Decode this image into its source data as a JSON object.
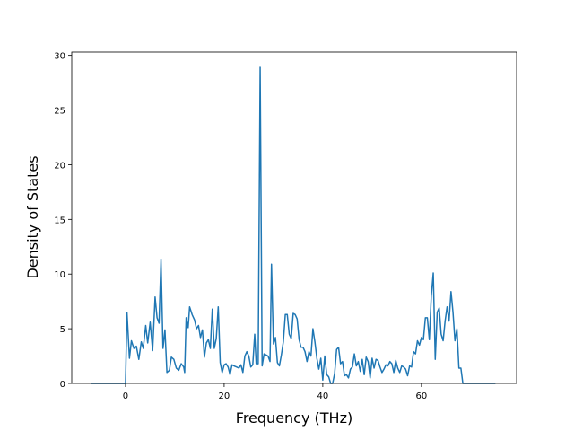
{
  "chart_data": {
    "type": "line",
    "x_label": "Frequency (THz)",
    "y_label": "Density of States",
    "color": "#1f77b4",
    "xlim": [
      -10.9,
      79.3
    ],
    "ylim": [
      0,
      30.3
    ],
    "xticks": [
      0,
      20,
      40,
      60
    ],
    "yticks": [
      0,
      5,
      10,
      15,
      20,
      25,
      30
    ],
    "x": [
      -7,
      -1,
      0,
      0.3,
      0.8,
      1.2,
      1.7,
      2.2,
      2.7,
      3.2,
      3.6,
      4.1,
      4.5,
      5,
      5.5,
      6,
      6.4,
      6.8,
      7.2,
      7.6,
      8,
      8.4,
      8.9,
      9.3,
      9.8,
      10.3,
      10.8,
      11.3,
      11.8,
      12,
      12.3,
      12.7,
      13,
      13.5,
      14,
      14.4,
      14.8,
      15.2,
      15.6,
      16,
      16.4,
      16.8,
      17.2,
      17.6,
      18,
      18.4,
      18.8,
      19.2,
      19.6,
      20,
      20.4,
      20.8,
      21.2,
      21.6,
      22,
      22.5,
      23,
      23.4,
      23.8,
      24.2,
      24.6,
      25,
      25.4,
      25.8,
      26.2,
      26.5,
      26.9,
      27.3,
      27.7,
      28.1,
      28.5,
      28.9,
      29.3,
      29.6,
      30,
      30.4,
      30.8,
      31.2,
      31.6,
      32,
      32.4,
      32.8,
      33.2,
      33.6,
      34,
      34.4,
      34.8,
      35.2,
      35.6,
      36,
      36.4,
      36.8,
      37.2,
      37.6,
      38,
      38.4,
      38.8,
      39.2,
      39.6,
      40,
      40.4,
      40.8,
      41.2,
      41.6,
      42,
      42.4,
      42.8,
      43.2,
      43.6,
      44,
      44.4,
      44.8,
      45.2,
      45.6,
      46,
      46.4,
      46.8,
      47.2,
      47.6,
      48,
      48.4,
      48.8,
      49.2,
      49.6,
      50,
      50.4,
      50.8,
      51.2,
      51.6,
      52,
      52.4,
      52.8,
      53.2,
      53.6,
      54,
      54.4,
      54.8,
      55.2,
      55.6,
      56,
      56.4,
      56.8,
      57.2,
      57.6,
      58,
      58.4,
      58.8,
      59.2,
      59.6,
      60,
      60.4,
      60.8,
      61.2,
      61.6,
      62,
      62.4,
      62.8,
      63.2,
      63.6,
      64,
      64.4,
      64.8,
      65.2,
      65.6,
      66,
      66.4,
      66.8,
      67.2,
      67.6,
      68,
      68.4,
      69,
      75
    ],
    "values": [
      0,
      0,
      0,
      6.5,
      2.3,
      3.9,
      3.2,
      3.4,
      2.2,
      3.8,
      3.2,
      5.3,
      3.7,
      5.6,
      3,
      7.9,
      6,
      5.5,
      11.3,
      3.2,
      4.9,
      1,
      1.2,
      2.4,
      2.2,
      1.4,
      1.2,
      1.8,
      1.5,
      1,
      6,
      5.1,
      7,
      6.3,
      5.8,
      5,
      5.3,
      4.2,
      4.9,
      2.4,
      3.7,
      4,
      3.2,
      6.8,
      3.2,
      4.1,
      7,
      1.9,
      1,
      1.7,
      1.8,
      1.5,
      0.8,
      1.7,
      1.6,
      1.5,
      1.4,
      1.7,
      1,
      2.5,
      2.9,
      2.5,
      1.5,
      1.7,
      4.5,
      1.8,
      1.8,
      28.9,
      1.6,
      2.7,
      2.6,
      2.5,
      2,
      10.9,
      3.6,
      4.2,
      1.9,
      1.6,
      2.6,
      3.8,
      6.3,
      6.3,
      4.5,
      4.1,
      6.4,
      6.3,
      5.9,
      4,
      3.3,
      3.3,
      2.9,
      2,
      2.9,
      2.5,
      5,
      3.8,
      2.3,
      1.3,
      2.3,
      0.3,
      2.5,
      0.8,
      0.6,
      0,
      0,
      0.9,
      3.1,
      3.3,
      1.8,
      2,
      0.7,
      0.8,
      0.5,
      1.3,
      1.5,
      2.7,
      1.6,
      2,
      1.1,
      2.2,
      0.8,
      2.4,
      2,
      0.5,
      2.3,
      1.4,
      2.2,
      2.1,
      1.5,
      1,
      1.3,
      1.7,
      1.6,
      2,
      1.8,
      1,
      2.1,
      1.4,
      1,
      1.6,
      1.5,
      1.3,
      0.7,
      1.6,
      1.5,
      2.9,
      2.7,
      3.9,
      3.5,
      4.2,
      4,
      6,
      6,
      4,
      8,
      10.1,
      2.2,
      6.5,
      6.9,
      4.5,
      3.9,
      5.7,
      7,
      5.7,
      8.4,
      6.5,
      3.9,
      5,
      1.4,
      1.4,
      0,
      0,
      0
    ]
  }
}
